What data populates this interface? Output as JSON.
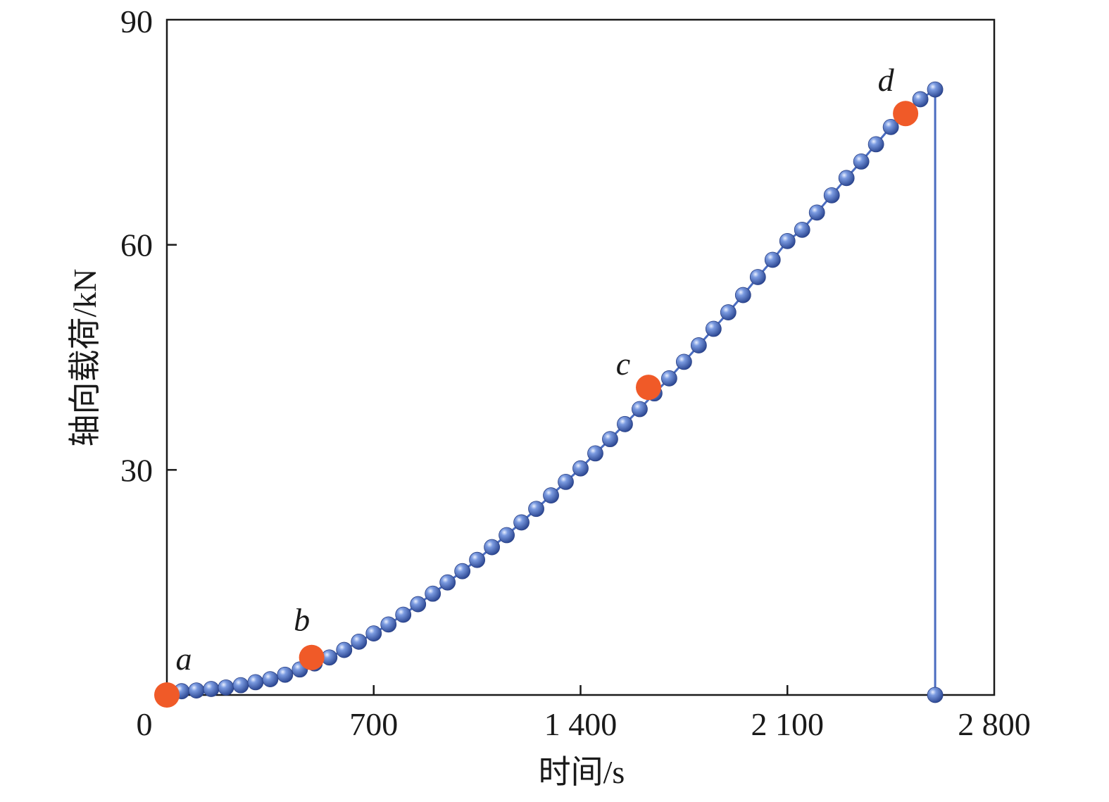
{
  "chart_data": {
    "type": "scatter",
    "xlabel": "时间/s",
    "ylabel": "轴向载荷/kN",
    "xlim": [
      0,
      2800
    ],
    "ylim": [
      0,
      90
    ],
    "x_ticks": [
      0,
      700,
      1400,
      2100,
      2800
    ],
    "x_tick_labels": [
      "0",
      "700",
      "1 400",
      "2 100",
      "2 800"
    ],
    "y_ticks": [
      30,
      60,
      90
    ],
    "y_tick_labels": [
      "30",
      "60",
      "90"
    ],
    "grid": false,
    "colors": {
      "series": "#3f5fae",
      "line": "#4a6cc0",
      "highlight": "#f05a28",
      "axis": "#1a1a1a"
    },
    "series": [
      {
        "x": [
          50,
          100,
          150,
          200,
          250,
          300,
          350,
          400,
          450,
          500,
          550,
          600,
          650,
          700,
          750,
          800,
          850,
          900,
          950,
          1000,
          1050,
          1100,
          1150,
          1200,
          1250,
          1300,
          1350,
          1400,
          1450,
          1500,
          1550,
          1600,
          1650,
          1700,
          1750,
          1800,
          1850,
          1900,
          1950,
          2000,
          2050,
          2100,
          2150,
          2200,
          2250,
          2300,
          2350,
          2400,
          2450,
          2500,
          2550,
          2600,
          2600
        ],
        "y": [
          0.5,
          0.6,
          0.8,
          1.0,
          1.3,
          1.7,
          2.1,
          2.7,
          3.4,
          4.2,
          5.0,
          6.0,
          7.1,
          8.2,
          9.4,
          10.7,
          12.1,
          13.5,
          15.0,
          16.5,
          18.0,
          19.7,
          21.3,
          23.0,
          24.8,
          26.6,
          28.4,
          30.2,
          32.2,
          34.1,
          36.1,
          38.1,
          40.2,
          42.2,
          44.4,
          46.6,
          48.8,
          51.0,
          53.3,
          55.7,
          58.0,
          60.5,
          62.0,
          64.3,
          66.6,
          68.9,
          71.1,
          73.4,
          75.7,
          77.7,
          79.4,
          80.7,
          0
        ]
      }
    ],
    "highlights": [
      {
        "label": "a",
        "x": 0,
        "y": 0
      },
      {
        "label": "b",
        "x": 490,
        "y": 5.0
      },
      {
        "label": "c",
        "x": 1630,
        "y": 41.0
      },
      {
        "label": "d",
        "x": 2500,
        "y": 77.5
      }
    ]
  }
}
